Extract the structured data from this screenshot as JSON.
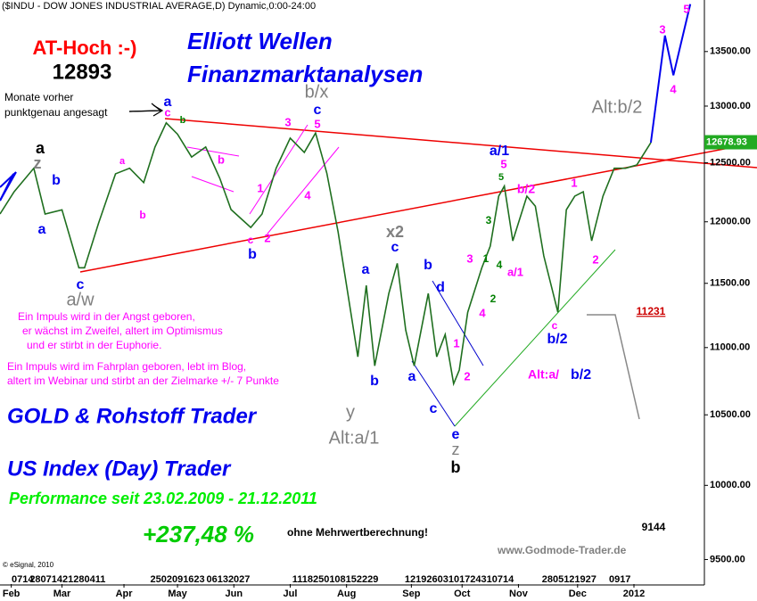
{
  "chart_data": {
    "type": "line",
    "title": "($INDU - DOW JONES INDUSTRIAL AVERAGE,D) Dynamic,0:00-24:00",
    "log_scale": true,
    "grid": false,
    "color": "#1f6f1f",
    "x": [
      0,
      5,
      12,
      16,
      22,
      28,
      30,
      35,
      41,
      46,
      51,
      55,
      59,
      63,
      68,
      73,
      78,
      82,
      89,
      93,
      98,
      103,
      108,
      112,
      116,
      120,
      123,
      127,
      130,
      133,
      138,
      141,
      144,
      147,
      152,
      155,
      158,
      161,
      163,
      166,
      171,
      174,
      177,
      179,
      182,
      187,
      190,
      193,
      198,
      201,
      204,
      207,
      210,
      214,
      218,
      222,
      226,
      231
    ],
    "values": [
      12065,
      12252,
      12453,
      12065,
      12100,
      11624,
      11624,
      11990,
      12405,
      12453,
      12330,
      12637,
      12850,
      12750,
      12550,
      12637,
      12367,
      12102,
      11953,
      12065,
      12453,
      12715,
      12590,
      12760,
      12410,
      11916,
      11483,
      10930,
      11483,
      10862,
      11420,
      11660,
      11134,
      10862,
      11420,
      10930,
      11100,
      10728,
      10830,
      11272,
      11624,
      11800,
      12215,
      12300,
      11843,
      12215,
      12130,
      11720,
      11272,
      12100,
      12215,
      12252,
      11843,
      12215,
      12453,
      12453,
      12481,
      12676
    ],
    "projection": {
      "color": "#0000ee",
      "x": [
        231,
        236,
        239,
        245
      ],
      "values": [
        12676,
        13650,
        13280,
        13950
      ]
    },
    "last_value": 12678.93,
    "xlim": [
      0,
      250
    ],
    "ylim": [
      9340,
      13990
    ],
    "yticks": [
      {
        "value": 13500,
        "label": "13500.00"
      },
      {
        "value": 13000,
        "label": "13000.00"
      },
      {
        "value": 12500,
        "label": "12500.00"
      },
      {
        "value": 12000,
        "label": "12000.00"
      },
      {
        "value": 11500,
        "label": "11500.00"
      },
      {
        "value": 11000,
        "label": "11000.00"
      },
      {
        "value": 10500,
        "label": "10500.00"
      },
      {
        "value": 10000,
        "label": "10000.00"
      },
      {
        "value": 9500,
        "label": "9500.00"
      }
    ],
    "xticks": [
      {
        "value": 8,
        "label": "0714"
      },
      {
        "value": 24,
        "label": "28071421280411"
      },
      {
        "value": 63,
        "label": "2502091623"
      },
      {
        "value": 81,
        "label": "06132027"
      },
      {
        "value": 119,
        "label": "1118250108152229"
      },
      {
        "value": 163,
        "label": "12192603101724310714"
      },
      {
        "value": 202,
        "label": "2805121927"
      },
      {
        "value": 220,
        "label": "0917"
      }
    ],
    "month_ticks": [
      {
        "value": 4,
        "label": "Feb"
      },
      {
        "value": 22,
        "label": "Mar"
      },
      {
        "value": 44,
        "label": "Apr"
      },
      {
        "value": 63,
        "label": "May"
      },
      {
        "value": 83,
        "label": "Jun"
      },
      {
        "value": 103,
        "label": "Jul"
      },
      {
        "value": 123,
        "label": "Aug"
      },
      {
        "value": 146,
        "label": "Sep"
      },
      {
        "value": 164,
        "label": "Oct"
      },
      {
        "value": 184,
        "label": "Nov"
      },
      {
        "value": 205,
        "label": "Dec"
      },
      {
        "value": 225,
        "label": "2012"
      }
    ],
    "annotations": [
      {
        "text": "AT-Hoch :-)",
        "color": "#ff0000"
      },
      {
        "text": "12893",
        "color": "#000000"
      },
      {
        "text": "Monate vorher",
        "color": "#000000"
      },
      {
        "text": "punktgenau angesagt",
        "color": "#000000"
      },
      {
        "text": "Elliott Wellen",
        "color": "#0000ee"
      },
      {
        "text": "Finanzmarktanalysen",
        "color": "#0000ee"
      },
      {
        "text": "a",
        "color": "#000000"
      },
      {
        "text": "z",
        "color": "#808080"
      },
      {
        "text": "b",
        "color": "#0000ee"
      },
      {
        "text": "a",
        "color": "#0000ee"
      },
      {
        "text": "c",
        "color": "#0000ee"
      },
      {
        "text": "a/w",
        "color": "#808080"
      },
      {
        "text": "a",
        "color": "#0000ee"
      },
      {
        "text": "c",
        "color": "#ff00ff"
      },
      {
        "text": "b",
        "color": "#008000"
      },
      {
        "text": "b/x",
        "color": "#808080"
      },
      {
        "text": "c",
        "color": "#0000ee"
      },
      {
        "text": "5",
        "color": "#ff00ff"
      },
      {
        "text": "3",
        "color": "#ff00ff"
      },
      {
        "text": "a/1",
        "color": "#0000ee"
      },
      {
        "text": "5",
        "color": "#ff00ff"
      },
      {
        "text": "5",
        "color": "#008000"
      },
      {
        "text": "b/2",
        "color": "#ff00ff"
      },
      {
        "text": "1",
        "color": "#ff00ff"
      },
      {
        "text": "Alt:b/2",
        "color": "#808080"
      },
      {
        "text": "x2",
        "color": "#808080"
      },
      {
        "text": "c",
        "color": "#0000ee"
      },
      {
        "text": "a",
        "color": "#0000ee"
      },
      {
        "text": "b",
        "color": "#0000ee"
      },
      {
        "text": "y",
        "color": "#808080"
      },
      {
        "text": "Alt:a/1",
        "color": "#808080"
      },
      {
        "text": "b",
        "color": "#0000ee"
      },
      {
        "text": "d",
        "color": "#0000ee"
      },
      {
        "text": "a",
        "color": "#0000ee"
      },
      {
        "text": "c",
        "color": "#0000ee"
      },
      {
        "text": "e",
        "color": "#0000ee"
      },
      {
        "text": "z",
        "color": "#808080"
      },
      {
        "text": "b",
        "color": "#000000"
      },
      {
        "text": "3",
        "color": "#ff00ff"
      },
      {
        "text": "1",
        "color": "#008000"
      },
      {
        "text": "3",
        "color": "#008000"
      },
      {
        "text": "4",
        "color": "#008000"
      },
      {
        "text": "a/1",
        "color": "#ff00ff"
      },
      {
        "text": "2",
        "color": "#008000"
      },
      {
        "text": "4",
        "color": "#ff00ff"
      },
      {
        "text": "1",
        "color": "#ff00ff"
      },
      {
        "text": "2",
        "color": "#ff00ff"
      },
      {
        "text": "b",
        "color": "#0000ee"
      },
      {
        "text": "c",
        "color": "#ff00ff"
      },
      {
        "text": "2",
        "color": "#ff00ff"
      },
      {
        "text": "1",
        "color": "#ff00ff"
      },
      {
        "text": "4",
        "color": "#ff00ff"
      },
      {
        "text": "b",
        "color": "#ff00ff"
      },
      {
        "text": "a",
        "color": "#ff00ff"
      },
      {
        "text": "b",
        "color": "#ff00ff"
      },
      {
        "text": "c",
        "color": "#ff00ff"
      },
      {
        "text": "b/2",
        "color": "#0000ee"
      },
      {
        "text": "2",
        "color": "#ff00ff"
      },
      {
        "text": "Alt:a/",
        "color": "#ff00ff"
      },
      {
        "text": "b/2",
        "color": "#0000ee"
      },
      {
        "text": "3",
        "color": "#ff00ff"
      },
      {
        "text": "5",
        "color": "#ff00ff"
      },
      {
        "text": "4",
        "color": "#ff00ff"
      },
      {
        "text": "11231",
        "color": "#cc0000"
      },
      {
        "text": "9144",
        "color": "#000000"
      },
      {
        "text": "Ein Impuls wird in der Angst geboren,",
        "color": "#ff00ff"
      },
      {
        "text": "er wächst im Zweifel, altert im Optimismus",
        "color": "#ff00ff"
      },
      {
        "text": "und er stirbt in der Euphorie.",
        "color": "#ff00ff"
      },
      {
        "text": "Ein Impuls wird im Fahrplan geboren, lebt im Blog,",
        "color": "#ff00ff"
      },
      {
        "text": "altert im Webinar und stirbt an der Zielmarke +/- 7 Punkte",
        "color": "#ff00ff"
      },
      {
        "text": "GOLD & Rohstoff Trader",
        "color": "#0000ee"
      },
      {
        "text": "US Index (Day) Trader",
        "color": "#0000ee"
      },
      {
        "text": "Performance seit 23.02.2009 - 21.12.2011",
        "color": "#00ee00"
      },
      {
        "text": "+237,48 %",
        "color": "#00cc00"
      },
      {
        "text": "ohne Mehrwertberechnung!",
        "color": "#000000"
      },
      {
        "text": "www.Godmode-Trader.de",
        "color": "#808080"
      },
      {
        "text": "© eSignal, 2010",
        "color": "#000000"
      }
    ]
  }
}
